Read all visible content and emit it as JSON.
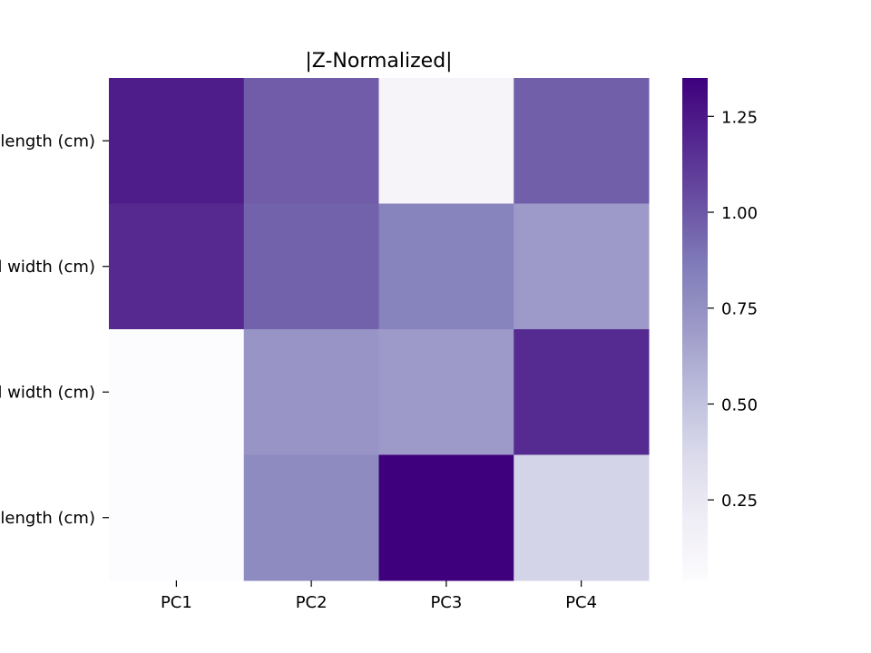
{
  "chart_data": {
    "type": "heatmap",
    "title": "|Z-Normalized|",
    "xlabel": "",
    "ylabel": "",
    "x_categories": [
      "PC1",
      "PC2",
      "PC3",
      "PC4"
    ],
    "y_categories": [
      "sepal length (cm)",
      "sepal width (cm)",
      "petal width (cm)",
      "petal length (cm)"
    ],
    "values": [
      [
        1.23,
        0.98,
        0.12,
        0.97
      ],
      [
        1.18,
        0.96,
        0.82,
        0.7
      ],
      [
        0.04,
        0.73,
        0.7,
        1.17
      ],
      [
        0.04,
        0.78,
        1.35,
        0.4
      ]
    ],
    "colorbar": {
      "ticks": [
        0.25,
        0.5,
        0.75,
        1.0,
        1.25
      ],
      "tick_labels": [
        "0.25",
        "0.50",
        "0.75",
        "1.00",
        "1.25"
      ],
      "range": [
        0.04,
        1.35
      ]
    },
    "colormap": "Purples",
    "colormap_stops": [
      "#fcfbfd",
      "#efedf5",
      "#dadaeb",
      "#bcbddc",
      "#9e9ac8",
      "#807dba",
      "#6a51a3",
      "#54278f",
      "#3f007d"
    ]
  }
}
